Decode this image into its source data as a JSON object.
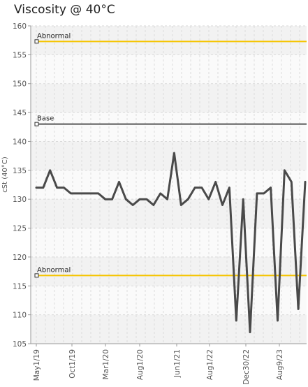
{
  "chart_data": {
    "type": "line",
    "title": "Viscosity @ 40°C",
    "ylabel": "cSt (40°C)",
    "xlabel": "",
    "ylim": [
      105,
      160
    ],
    "y_ticks": [
      105,
      110,
      115,
      120,
      125,
      130,
      135,
      140,
      145,
      150,
      155,
      160
    ],
    "x_tick_labels": [
      "May1/19",
      "Oct1/19",
      "Mar1/20",
      "Aug1/20",
      "Jun1/21",
      "Aug1/22",
      "Dec30/22",
      "Aug9/23"
    ],
    "grid": true,
    "reference_lines": [
      {
        "label": "Abnormal",
        "value": 157.3,
        "color": "#f5c400"
      },
      {
        "label": "Base",
        "value": 143,
        "color": "#555555"
      },
      {
        "label": "Abnormal",
        "value": 116.8,
        "color": "#f5c400"
      }
    ],
    "series": [
      {
        "name": "",
        "color": "#4a4a4a",
        "values": [
          132,
          132,
          135,
          132,
          132,
          131,
          131,
          131,
          131,
          131,
          130,
          130,
          133,
          130,
          129,
          130,
          130,
          129,
          131,
          130,
          138,
          129,
          130,
          132,
          132,
          130,
          133,
          129,
          132,
          109,
          130,
          107,
          131,
          131,
          132,
          109,
          135,
          133,
          111,
          133
        ]
      }
    ]
  }
}
